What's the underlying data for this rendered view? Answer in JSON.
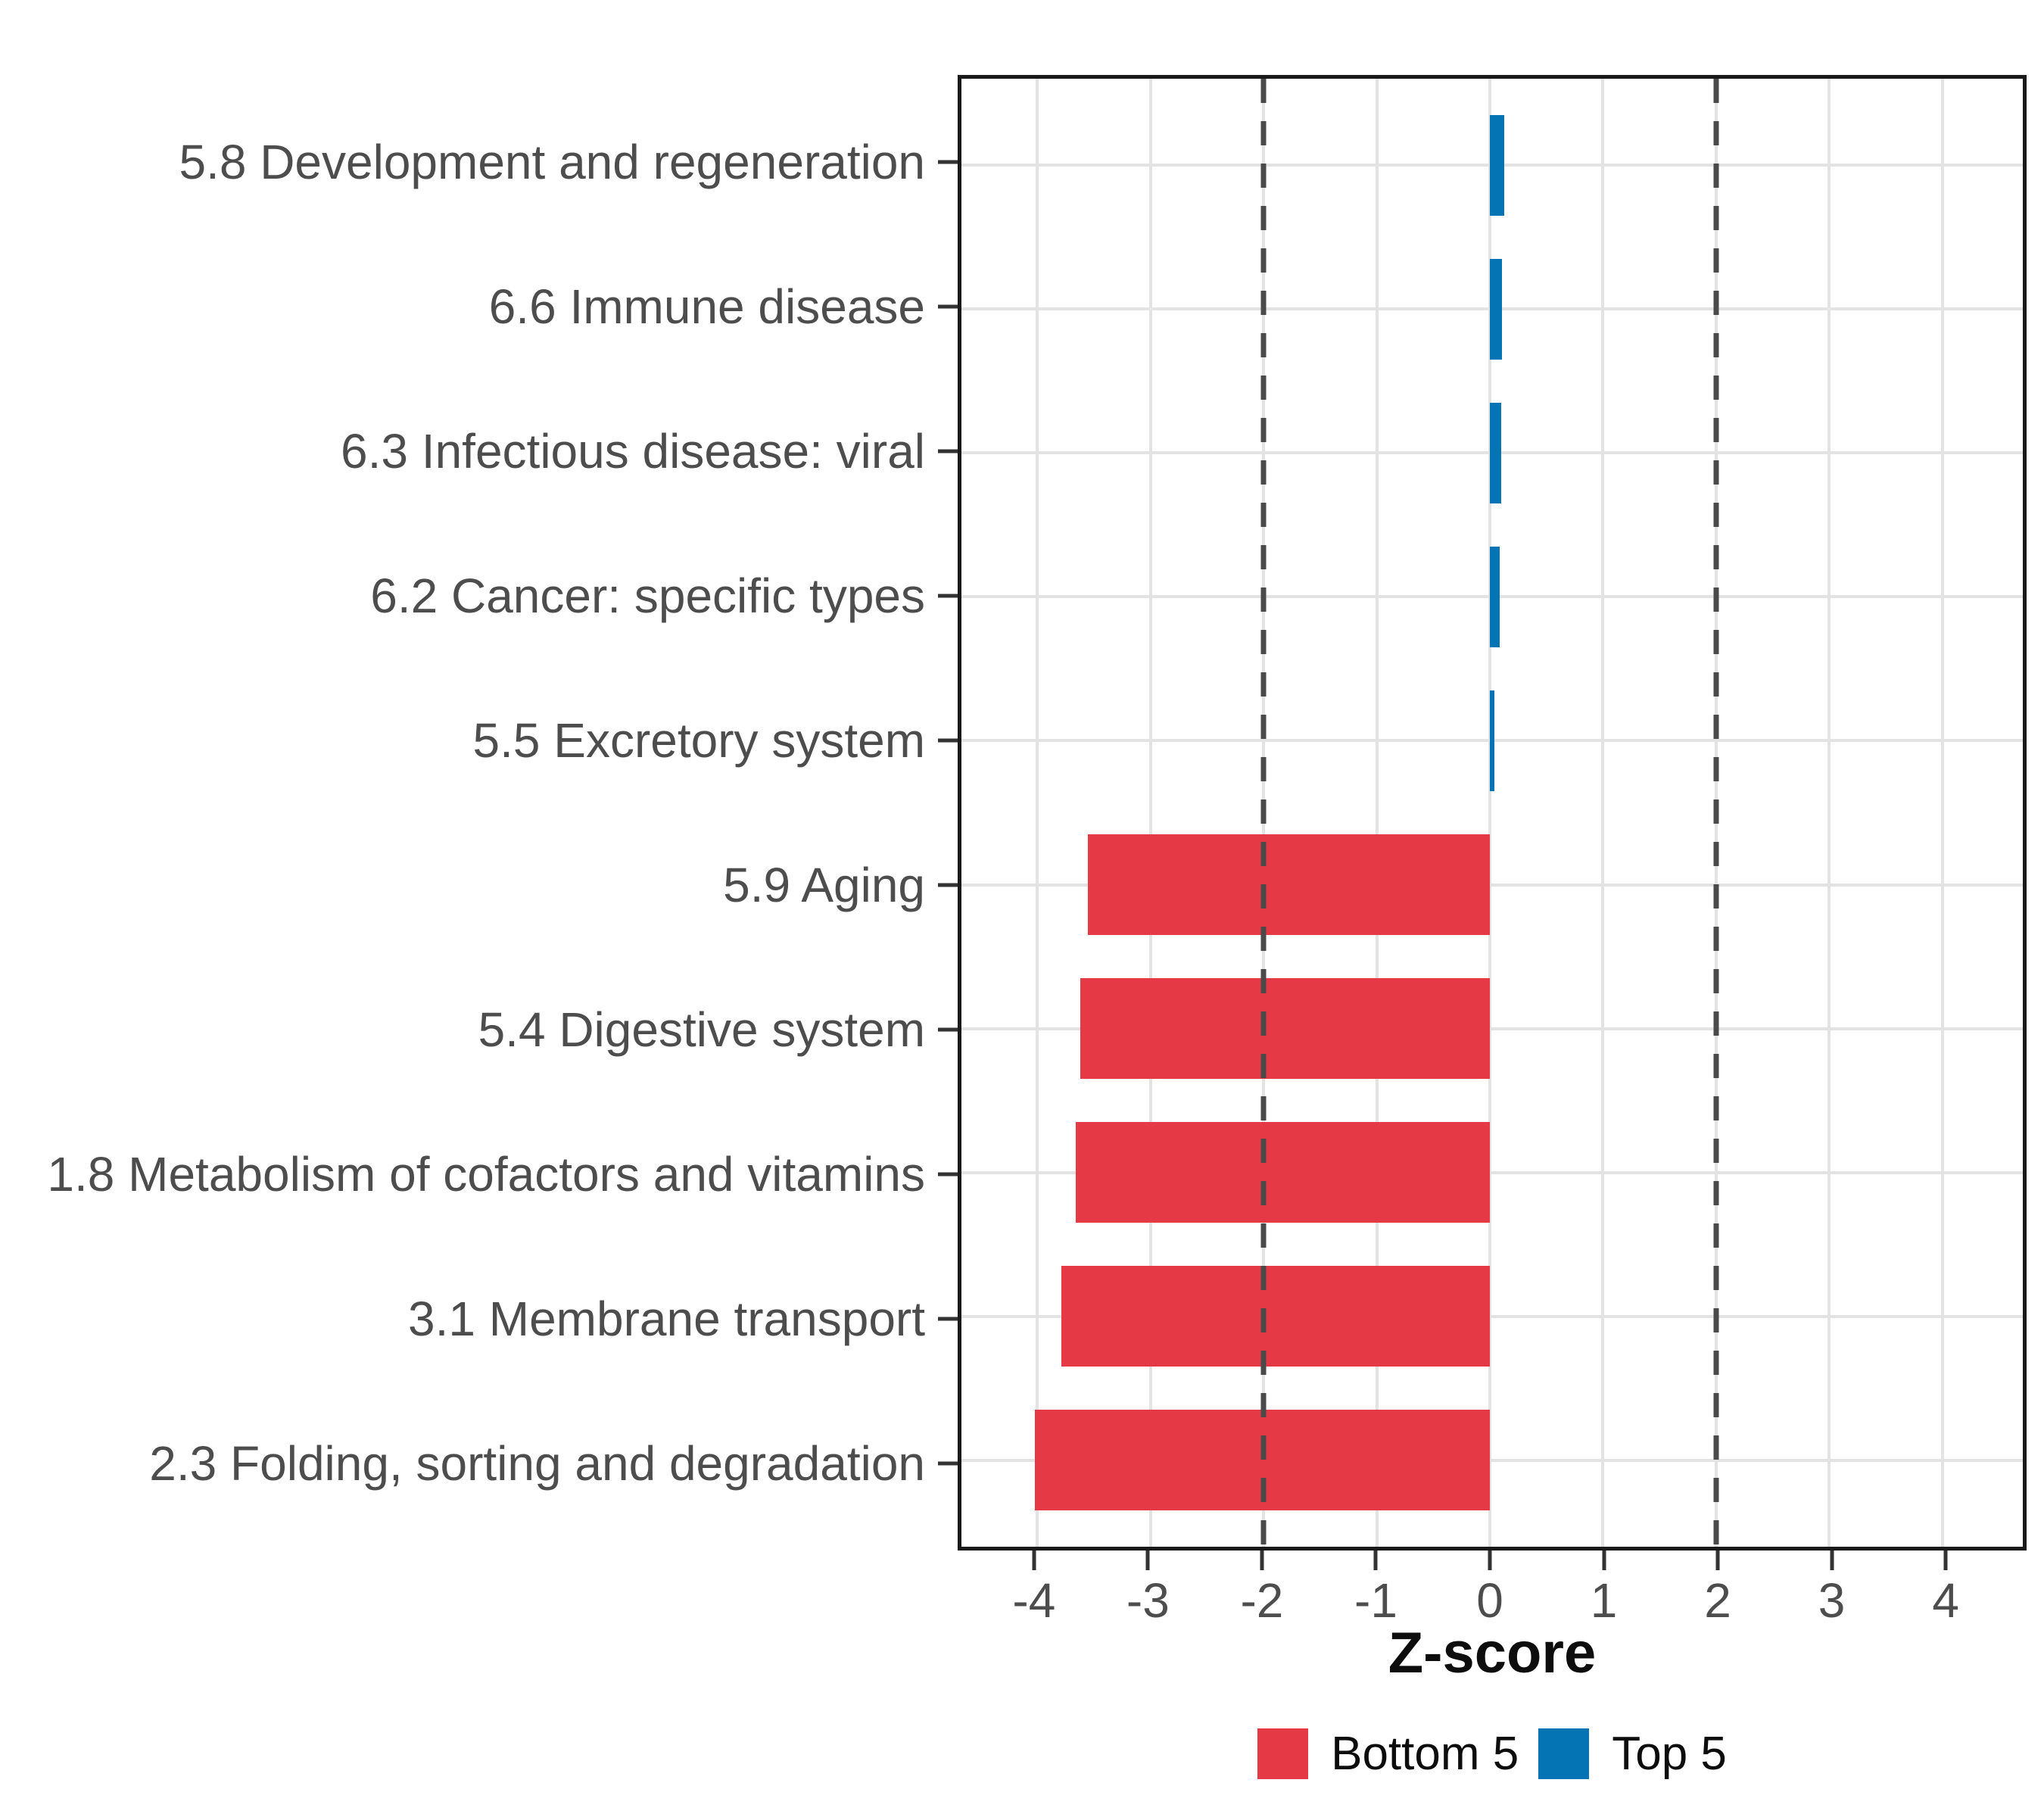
{
  "chart_data": {
    "type": "bar",
    "orientation": "horizontal",
    "title": "",
    "xlabel": "Z-score",
    "ylabel": "",
    "categories": [
      "5.8 Development and regeneration",
      "6.6 Immune disease",
      "6.3 Infectious disease: viral",
      "6.2 Cancer: specific types",
      "5.5 Excretory system",
      "5.9 Aging",
      "5.4 Digestive system",
      "1.8 Metabolism of cofactors and vitamins",
      "3.1 Membrane transport",
      "2.3 Folding, sorting and degradation"
    ],
    "series": [
      {
        "name": "Top 5",
        "color": "#0474B4",
        "values": [
          0.13,
          0.11,
          0.1,
          0.09,
          0.04,
          null,
          null,
          null,
          null,
          null
        ]
      },
      {
        "name": "Bottom 5",
        "color": "#E63946",
        "values": [
          null,
          null,
          null,
          null,
          null,
          -3.55,
          -3.62,
          -3.66,
          -3.79,
          -4.02
        ]
      }
    ],
    "x_ticks": [
      -4,
      -3,
      -2,
      -1,
      0,
      1,
      2,
      3,
      4
    ],
    "x_tick_labels": [
      "-4",
      "-3",
      "-2",
      "-1",
      "0",
      "1",
      "2",
      "3",
      "4"
    ],
    "xlim": [
      -4.67,
      4.71
    ],
    "reference_lines": [
      -2,
      2
    ],
    "reference_line_style": "dashed",
    "grid": true,
    "panel_border": true,
    "legend_position": "bottom",
    "legend": [
      {
        "label": "Bottom 5",
        "color": "#E63946"
      },
      {
        "label": "Top 5",
        "color": "#0474B4"
      }
    ],
    "colors": {
      "bottom5": "#E63946",
      "top5": "#0474B4",
      "gridline": "#e3e3e3",
      "reference_line": "#4a4a4a",
      "panel_border": "#1a1a1a",
      "axis_text": "#4d4d4d",
      "title_text": "#0d0d0d"
    }
  }
}
